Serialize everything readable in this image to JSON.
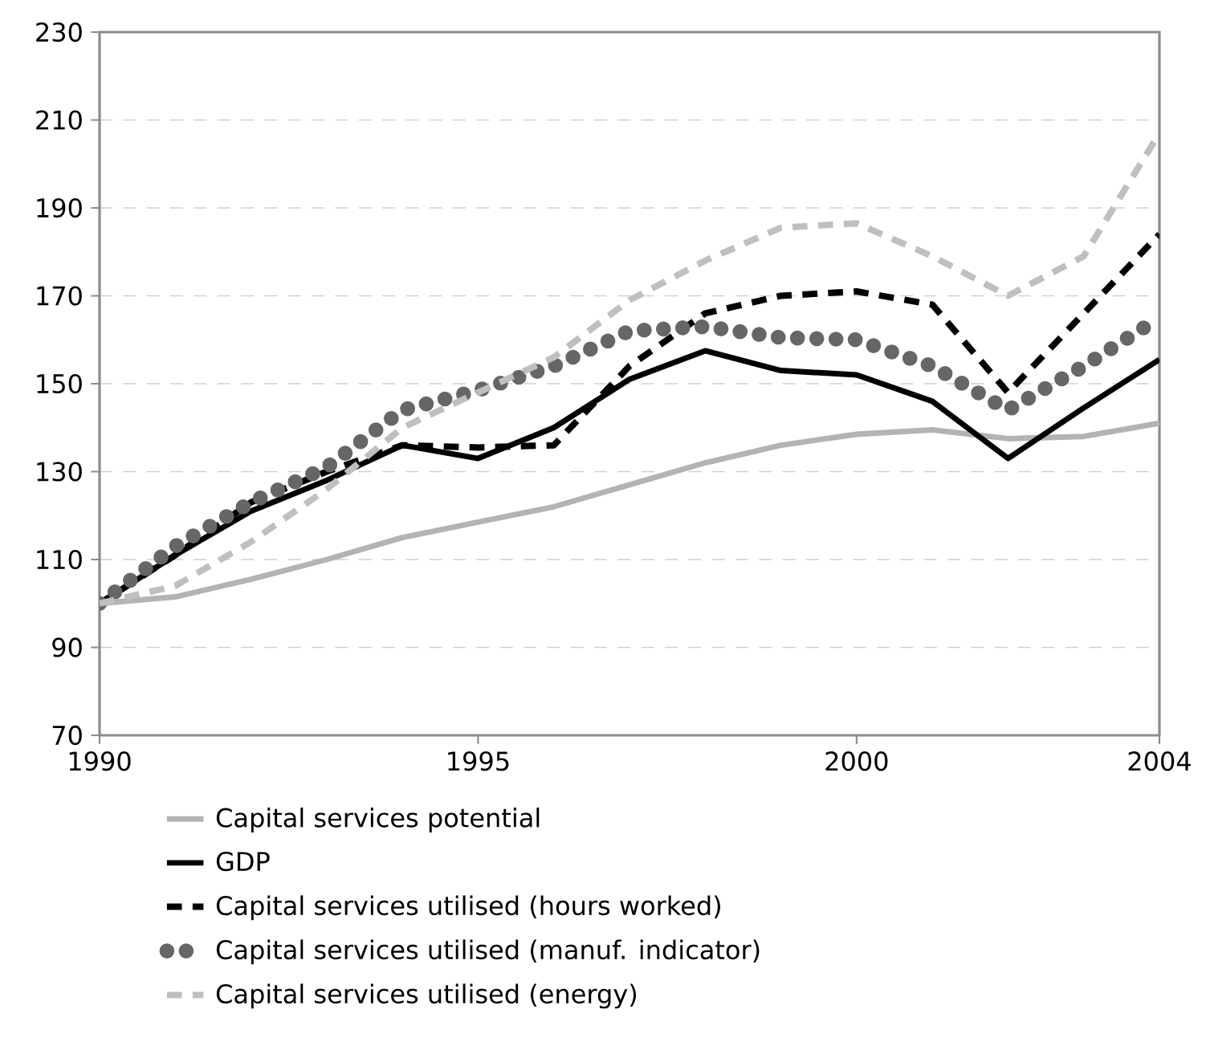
{
  "chart_data": {
    "type": "line",
    "x": [
      1990,
      1991,
      1992,
      1993,
      1994,
      1995,
      1996,
      1997,
      1998,
      1999,
      2000,
      2001,
      2002,
      2003,
      2004
    ],
    "series": [
      {
        "name": "Capital services potential",
        "color": "#b3b3b3",
        "line_style": "solid",
        "values": [
          100,
          101.5,
          105.5,
          110,
          115,
          118.5,
          122,
          127,
          132,
          136,
          138.5,
          139.5,
          137.5,
          138,
          141
        ]
      },
      {
        "name": "GDP",
        "color": "#000000",
        "line_style": "solid",
        "values": [
          100,
          111,
          121,
          128,
          136,
          133,
          140,
          151,
          157.5,
          153,
          152,
          146,
          133,
          144.5,
          155.5
        ]
      },
      {
        "name": "Capital services utilised (hours worked)",
        "color": "#000000",
        "line_style": "dashed",
        "values": [
          100,
          111,
          123,
          130,
          136,
          135.5,
          136,
          154,
          166,
          170,
          171,
          168,
          148,
          166,
          184
        ]
      },
      {
        "name": "Capital services utilised (manuf. indicator)",
        "color": "#666666",
        "line_style": "dotted",
        "values": [
          100,
          113,
          123,
          131,
          144,
          148.5,
          154,
          162,
          163,
          160.5,
          160,
          154,
          144,
          154,
          165
        ]
      },
      {
        "name": "Capital services utilised (energy)",
        "color": "#bfbfbf",
        "line_style": "dashed",
        "values": [
          100,
          104,
          114,
          126,
          140,
          148,
          156,
          169,
          178,
          185.5,
          186.5,
          179,
          170,
          179,
          207
        ]
      }
    ],
    "xlim": [
      1990,
      2004
    ],
    "xticks": [
      1990,
      1995,
      2000,
      2004
    ],
    "ylim": [
      70,
      230
    ],
    "yticks": [
      70,
      90,
      110,
      130,
      150,
      170,
      190,
      210,
      230
    ],
    "grid": "y",
    "legend": "bottom",
    "marker": "none"
  }
}
